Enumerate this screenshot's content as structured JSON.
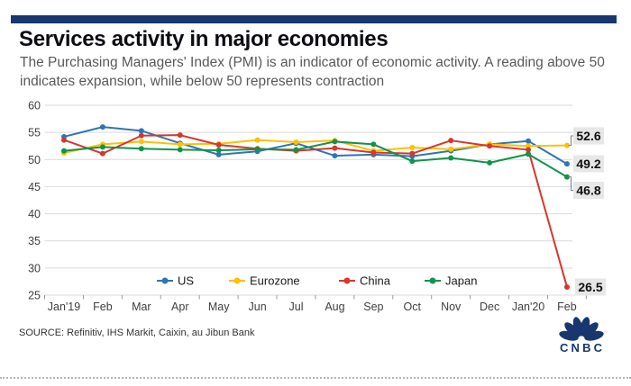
{
  "header": {
    "title": "Services activity in major economies",
    "subtitle": "The Purchasing Managers' Index (PMI) is an indicator of economic activity. A reading above 50 indicates expansion, while below 50 represents contraction"
  },
  "chart_data": {
    "type": "line",
    "title": "Services activity in major economies",
    "categories": [
      "Jan'19",
      "Feb",
      "Mar",
      "Apr",
      "May",
      "Jun",
      "Jul",
      "Aug",
      "Sep",
      "Oct",
      "Nov",
      "Dec",
      "Jan'20",
      "Feb"
    ],
    "series": [
      {
        "name": "US",
        "color": "#2E75B6",
        "values": [
          54.2,
          56.0,
          55.3,
          53.0,
          50.9,
          51.5,
          53.0,
          50.7,
          50.9,
          50.6,
          51.6,
          52.8,
          53.4,
          49.2
        ],
        "end_label": "49.2"
      },
      {
        "name": "Eurozone",
        "color": "#FFC000",
        "values": [
          51.2,
          52.8,
          53.3,
          52.8,
          52.9,
          53.6,
          53.2,
          53.5,
          51.6,
          52.2,
          51.9,
          52.8,
          52.5,
          52.6
        ],
        "end_label": "52.6"
      },
      {
        "name": "China",
        "color": "#D6372C",
        "values": [
          53.6,
          51.1,
          54.4,
          54.5,
          52.7,
          52.0,
          51.6,
          52.1,
          51.3,
          51.1,
          53.5,
          52.5,
          51.8,
          26.5
        ],
        "end_label": "26.5"
      },
      {
        "name": "Japan",
        "color": "#12934C",
        "values": [
          51.6,
          52.3,
          52.0,
          51.8,
          51.7,
          51.9,
          51.8,
          53.3,
          52.8,
          49.7,
          50.3,
          49.4,
          51.0,
          46.8
        ],
        "end_label": "46.8"
      }
    ],
    "xlabel": "",
    "ylabel": "",
    "ylim": [
      25,
      60
    ],
    "ytick_step": 5,
    "grid": true,
    "legend_position": "bottom-inside"
  },
  "footer": {
    "source": "SOURCE: Refinitiv, IHS Markit, Caixin, au Jibun Bank",
    "logo_text": "CNBC"
  },
  "colors": {
    "brand_bar": "#17376E",
    "grid": "#D9D9D9",
    "tick": "#9A9A9A",
    "label_bg": "#E7E7E7",
    "connector": "#7F7F8F",
    "logo": "#17376E"
  }
}
